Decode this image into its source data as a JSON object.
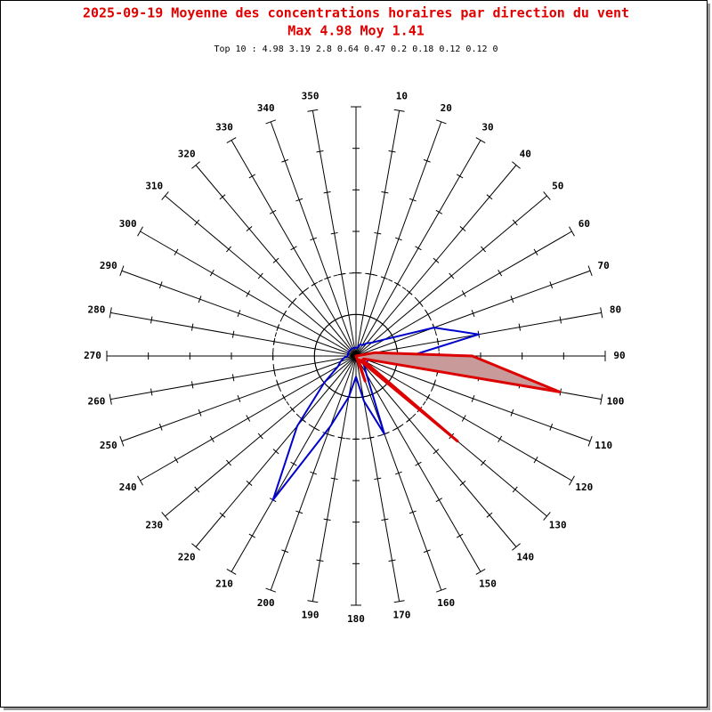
{
  "chart_data": {
    "type": "polar",
    "title": "2025-09-19 Moyenne des concentrations horaires par direction du vent",
    "subtitle": "Max 4.98 Moy 1.41",
    "annotation": "Top 10 : 4.98 3.19 2.8 0.64 0.47 0.2 0.18 0.12 0.12 0",
    "categories": [
      null,
      "10",
      "20",
      "30",
      "40",
      "50",
      "60",
      "70",
      "80",
      "90",
      "100",
      "110",
      "120",
      "130",
      "140",
      "150",
      "160",
      "170",
      "180",
      "190",
      "200",
      "210",
      "220",
      "230",
      "240",
      "250",
      "260",
      "270",
      "280",
      "290",
      "300",
      "310",
      "320",
      "330",
      "340",
      "350"
    ],
    "rlim": [
      0,
      6
    ],
    "rticks": [
      1,
      2,
      3,
      4,
      5,
      6
    ],
    "series": [
      {
        "color": "#0000cc",
        "fill": "none",
        "values": [
          0.2,
          0.2,
          0.3,
          0.3,
          0.4,
          0.5,
          0.8,
          2.0,
          3.0,
          1.3,
          0.5,
          0.3,
          0.3,
          0.3,
          0.3,
          0.5,
          2.0,
          1.1,
          0.5,
          1.0,
          1.8,
          4.0,
          2.2,
          1.0,
          0.5,
          0.4,
          0.3,
          0.2,
          0.2,
          0.2,
          0.2,
          0.2,
          0.2,
          0.2,
          0.2,
          0.2
        ]
      },
      {
        "color": "#dd0000",
        "fill": "#c99a9a",
        "values": [
          0,
          0,
          0,
          0,
          0,
          0,
          0,
          0,
          0.47,
          2.8,
          4.98,
          0.2,
          0.18,
          3.19,
          0.12,
          0.12,
          0.64,
          0,
          0,
          0,
          0,
          0,
          0,
          0,
          0,
          0,
          0,
          0,
          0,
          0,
          0,
          0,
          0,
          0,
          0,
          0
        ]
      }
    ]
  }
}
